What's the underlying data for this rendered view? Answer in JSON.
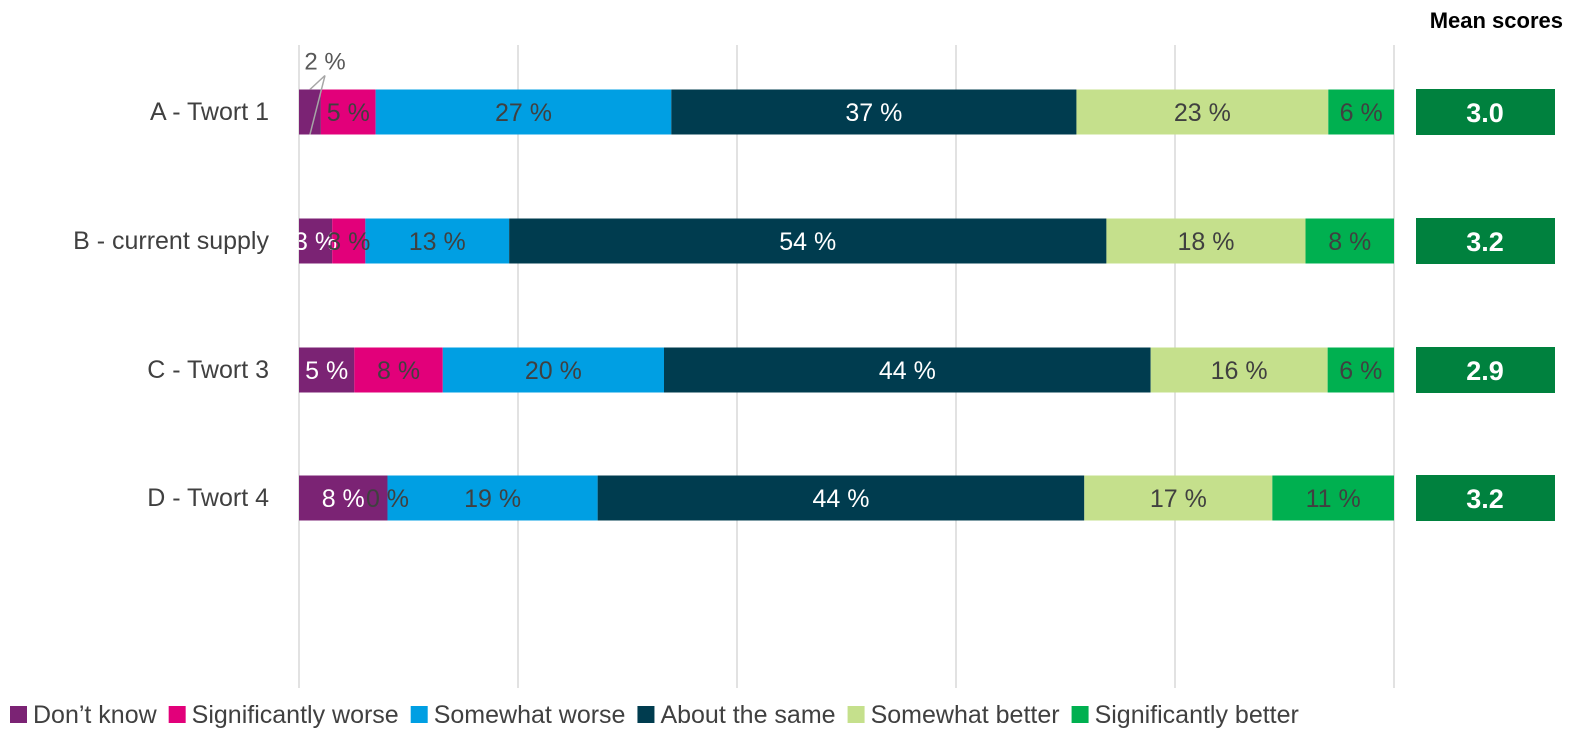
{
  "chart_data": {
    "type": "bar",
    "orientation": "horizontal",
    "stacked": true,
    "stack_total_percent": 100,
    "categories": [
      "A - Twort 1",
      "B - current supply",
      "C - Twort 3",
      "D - Twort 4"
    ],
    "series": [
      {
        "name": "Don’t know",
        "color": "#7B2374",
        "values": [
          2,
          3,
          5,
          8
        ],
        "labels": [
          "2 %",
          "3 %",
          "5 %",
          "8 %"
        ]
      },
      {
        "name": "Significantly worse",
        "color": "#E2007A",
        "values": [
          5,
          3,
          8,
          0
        ],
        "labels": [
          "5 %",
          "3 %",
          "8 %",
          "0 %"
        ]
      },
      {
        "name": "Somewhat worse",
        "color": "#009FE3",
        "values": [
          27,
          13,
          20,
          19
        ],
        "labels": [
          "27 %",
          "13 %",
          "20 %",
          "19 %"
        ]
      },
      {
        "name": "About the same",
        "color": "#003C4F",
        "values": [
          37,
          54,
          44,
          44
        ],
        "labels": [
          "37 %",
          "54 %",
          "44 %",
          "44 %"
        ]
      },
      {
        "name": "Somewhat better",
        "color": "#C5E08C",
        "values": [
          23,
          18,
          16,
          17
        ],
        "labels": [
          "23 %",
          "18 %",
          "16 %",
          "17 %"
        ]
      },
      {
        "name": "Significantly better",
        "color": "#00B050",
        "values": [
          6,
          8,
          6,
          11
        ],
        "labels": [
          "6 %",
          "8 %",
          "6 %",
          "11 %"
        ]
      }
    ],
    "xlim": [
      0,
      100
    ],
    "grid": true,
    "legend_position": "bottom",
    "mean_scores": {
      "title": "Mean scores",
      "values": [
        "3.0",
        "3.2",
        "2.9",
        "3.2"
      ],
      "color": "#00813E"
    }
  }
}
